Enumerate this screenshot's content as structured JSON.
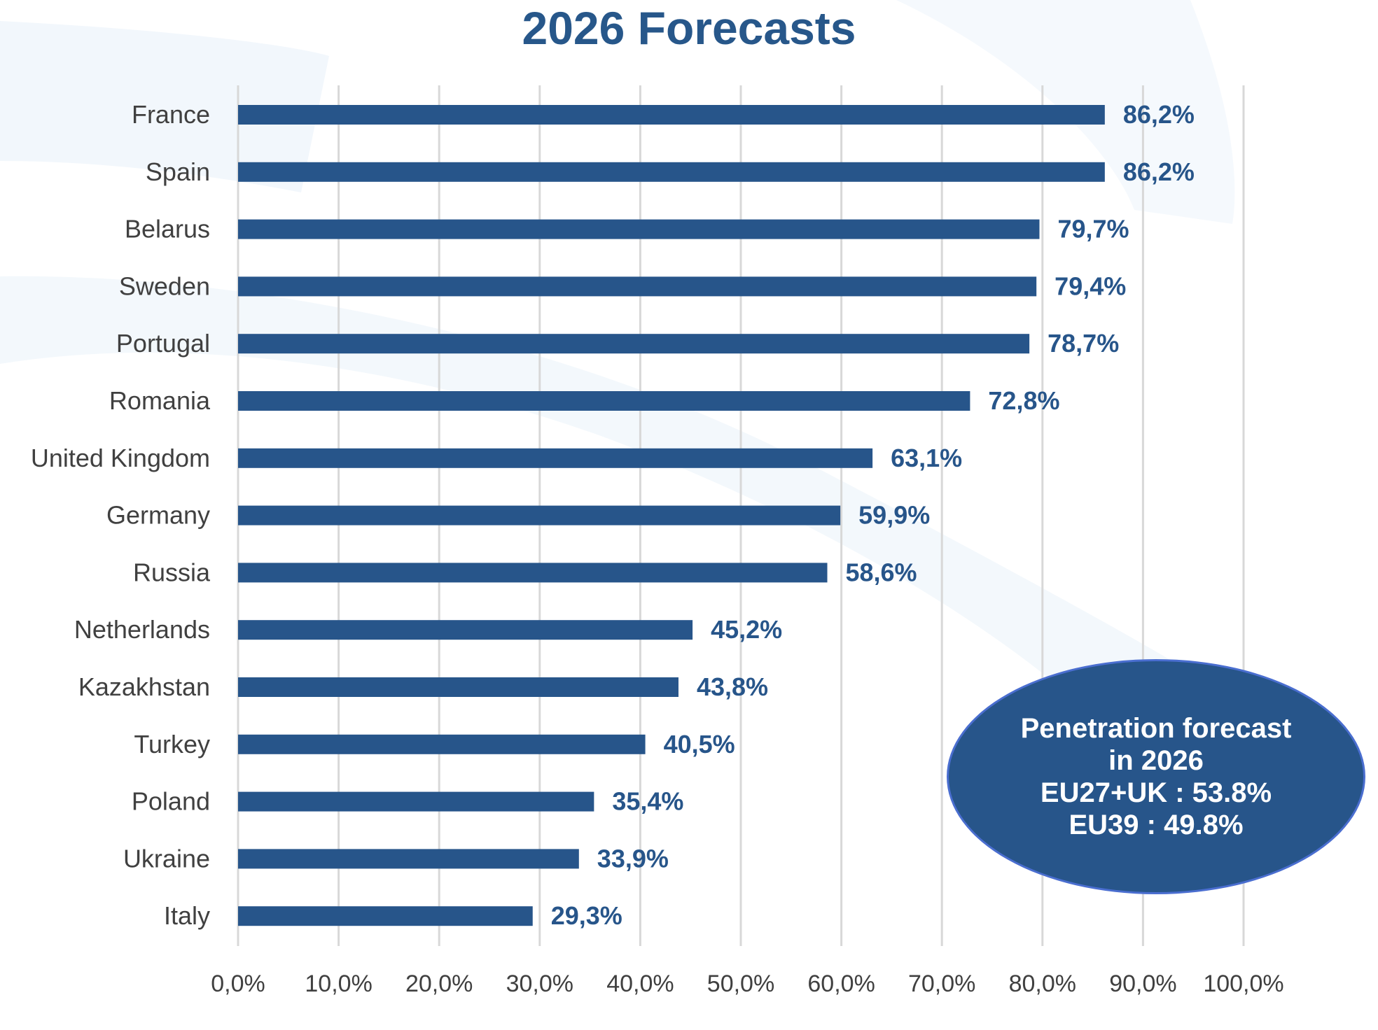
{
  "chart_data": {
    "type": "bar",
    "orientation": "horizontal",
    "title": "2026 Forecasts",
    "xlabel": "",
    "ylabel": "",
    "categories": [
      "France",
      "Spain",
      "Belarus",
      "Sweden",
      "Portugal",
      "Romania",
      "United Kingdom",
      "Germany",
      "Russia",
      "Netherlands",
      "Kazakhstan",
      "Turkey",
      "Poland",
      "Ukraine",
      "Italy"
    ],
    "values": [
      86.2,
      86.2,
      79.7,
      79.4,
      78.7,
      72.8,
      63.1,
      59.9,
      58.6,
      45.2,
      43.8,
      40.5,
      35.4,
      33.9,
      29.3
    ],
    "value_labels": [
      "86,2%",
      "86,2%",
      "79,7%",
      "79,4%",
      "78,7%",
      "72,8%",
      "63,1%",
      "59,9%",
      "58,6%",
      "45,2%",
      "43,8%",
      "40,5%",
      "35,4%",
      "33,9%",
      "29,3%"
    ],
    "xlim": [
      0,
      100
    ],
    "xticks": [
      0,
      10,
      20,
      30,
      40,
      50,
      60,
      70,
      80,
      90,
      100
    ],
    "xtick_labels": [
      "0,0%",
      "10,0%",
      "20,0%",
      "30,0%",
      "40,0%",
      "50,0%",
      "60,0%",
      "70,0%",
      "80,0%",
      "90,0%",
      "100,0%"
    ],
    "grid": "vertical",
    "legend": "none",
    "colors": {
      "bar": "#27558a",
      "label": "#27558a",
      "title": "#27578a",
      "grid": "#d8d8d8",
      "category": "#404040"
    }
  },
  "callout": {
    "lines": [
      "Penetration forecast",
      "in 2026",
      "EU27+UK : 53.8%",
      "EU39 : 49.8%"
    ],
    "fill": "#27558a"
  }
}
